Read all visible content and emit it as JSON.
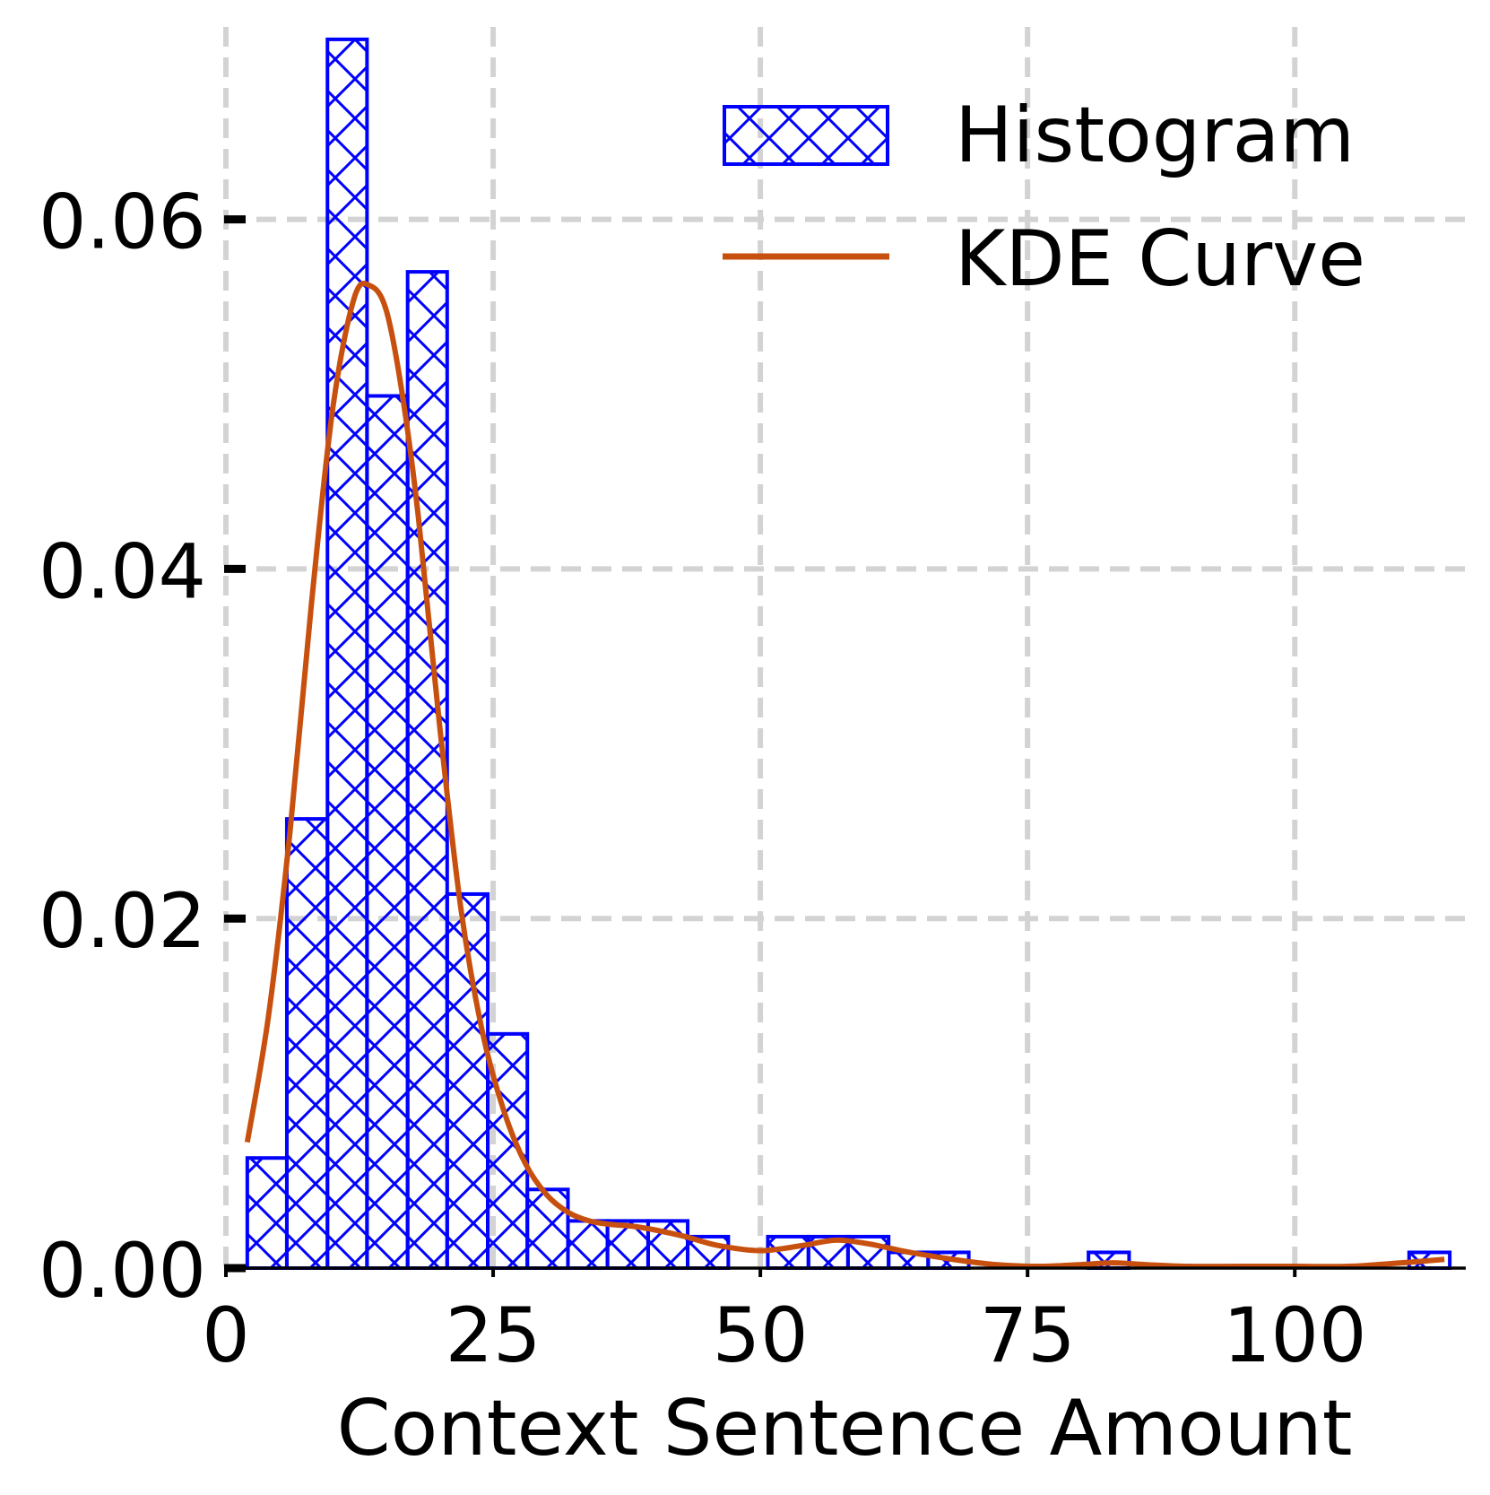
{
  "chart_data": {
    "type": "bar",
    "subtype": "histogram-with-kde",
    "xlabel": "Context Sentence Amount",
    "ylabel": "",
    "xlim": [
      0,
      116
    ],
    "ylim": [
      0,
      0.0705
    ],
    "xticks": [
      0,
      25,
      50,
      75,
      100
    ],
    "xtick_labels": [
      "0",
      "25",
      "50",
      "75",
      100
    ],
    "yticks": [
      0.0,
      0.02,
      0.04,
      0.06
    ],
    "ytick_labels": [
      "0.00",
      "0.02",
      "0.04",
      "0.06"
    ],
    "grid": true,
    "legend_position": "top-right",
    "colors": {
      "histogram": "#0000ff",
      "kde": "#c8500f",
      "grid": "#d3d3d3"
    },
    "series": [
      {
        "name": "Histogram",
        "type": "histogram",
        "bins": [
          {
            "x0": 2.0,
            "x1": 5.7,
            "value": 0.0063
          },
          {
            "x0": 5.7,
            "x1": 9.5,
            "value": 0.0257
          },
          {
            "x0": 9.5,
            "x1": 13.2,
            "value": 0.0703
          },
          {
            "x0": 13.2,
            "x1": 17.0,
            "value": 0.0499
          },
          {
            "x0": 17.0,
            "x1": 20.7,
            "value": 0.057
          },
          {
            "x0": 20.7,
            "x1": 24.5,
            "value": 0.0214
          },
          {
            "x0": 24.5,
            "x1": 28.2,
            "value": 0.0134
          },
          {
            "x0": 28.2,
            "x1": 32.0,
            "value": 0.0045
          },
          {
            "x0": 32.0,
            "x1": 35.7,
            "value": 0.0027
          },
          {
            "x0": 35.7,
            "x1": 39.5,
            "value": 0.0027
          },
          {
            "x0": 39.5,
            "x1": 43.2,
            "value": 0.0027
          },
          {
            "x0": 43.2,
            "x1": 47.0,
            "value": 0.0018
          },
          {
            "x0": 47.0,
            "x1": 50.7,
            "value": 0.0
          },
          {
            "x0": 50.7,
            "x1": 54.5,
            "value": 0.0018
          },
          {
            "x0": 54.5,
            "x1": 58.2,
            "value": 0.0018
          },
          {
            "x0": 58.2,
            "x1": 62.0,
            "value": 0.0018
          },
          {
            "x0": 62.0,
            "x1": 65.7,
            "value": 0.0009
          },
          {
            "x0": 65.7,
            "x1": 69.5,
            "value": 0.0009
          },
          {
            "x0": 80.7,
            "x1": 84.5,
            "value": 0.0009
          },
          {
            "x0": 110.7,
            "x1": 114.5,
            "value": 0.0009
          }
        ]
      },
      {
        "name": "KDE Curve",
        "type": "line",
        "x": [
          2,
          4,
          6,
          8,
          10,
          12,
          13.5,
          15,
          16.5,
          18,
          20,
          22,
          24,
          26,
          28,
          30,
          32,
          34,
          36,
          38,
          40,
          43,
          46,
          50,
          54,
          57,
          60,
          64,
          68,
          72,
          76,
          80,
          83,
          86,
          90,
          95,
          100,
          105,
          110,
          114
        ],
        "y": [
          0.0072,
          0.0145,
          0.025,
          0.038,
          0.0492,
          0.0555,
          0.0562,
          0.0548,
          0.05,
          0.043,
          0.031,
          0.0205,
          0.0135,
          0.009,
          0.006,
          0.0042,
          0.0032,
          0.0027,
          0.0025,
          0.0024,
          0.0022,
          0.0018,
          0.0013,
          0.001,
          0.0013,
          0.0016,
          0.0014,
          0.0009,
          0.0005,
          0.0002,
          0.0001,
          0.0002,
          0.0003,
          0.0002,
          0.0001,
          0.0001,
          0.0001,
          0.0001,
          0.0003,
          0.0005
        ]
      }
    ]
  }
}
